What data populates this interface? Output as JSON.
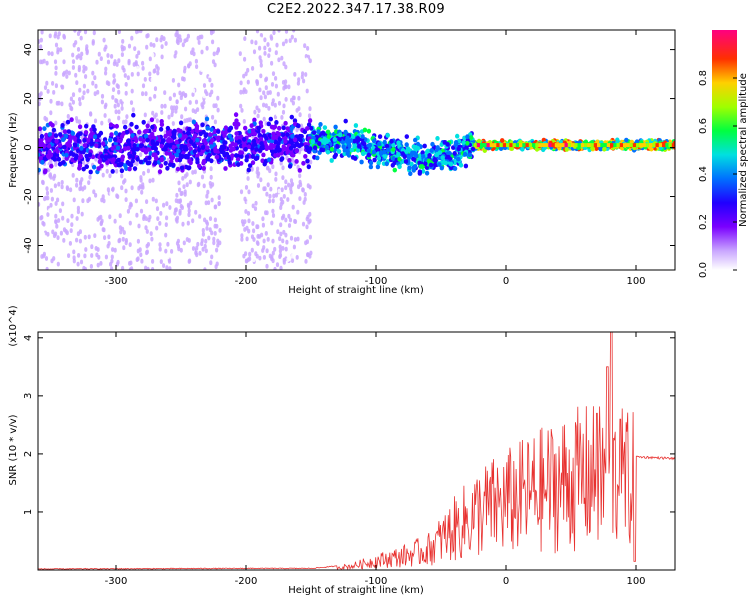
{
  "title": "C2E2.2022.347.17.38.R09",
  "chart_data": [
    {
      "type": "heatmap",
      "xlabel": "Height of straight line (km)",
      "ylabel": "Frequency (Hz)",
      "xlim": [
        -360,
        130
      ],
      "ylim": [
        -50,
        48
      ],
      "x_ticks": [
        -300,
        -200,
        -100,
        0,
        100
      ],
      "y_ticks": [
        -40,
        -20,
        0,
        20,
        40
      ],
      "colorbar": {
        "label": "Normalized spectral amplitude",
        "range": [
          0.0,
          1.0
        ],
        "ticks": [
          "0.0",
          "0.2",
          "0.4",
          "0.6",
          "0.8"
        ],
        "colors": [
          "#ffffff",
          "#c9a6ff",
          "#7a00ff",
          "#2000ff",
          "#0070ff",
          "#00e0e0",
          "#00ff40",
          "#a0ff00",
          "#ffd000",
          "#ff3000",
          "#ff0080"
        ]
      },
      "ridge_frequency_hz": [
        {
          "x": -360,
          "y": 0
        },
        {
          "x": -300,
          "y": 0
        },
        {
          "x": -220,
          "y": 1
        },
        {
          "x": -150,
          "y": 3
        },
        {
          "x": -120,
          "y": 2
        },
        {
          "x": -90,
          "y": -2
        },
        {
          "x": -60,
          "y": -4
        },
        {
          "x": -35,
          "y": -2
        },
        {
          "x": -25,
          "y": 1
        },
        {
          "x": 0,
          "y": 1
        },
        {
          "x": 130,
          "y": 1
        }
      ],
      "grid": false
    },
    {
      "type": "line",
      "xlabel": "Height of straight line (km)",
      "ylabel": "SNR (10 * v/v)",
      "y_multiplier": "(x10^4)",
      "xlim": [
        -360,
        130
      ],
      "ylim": [
        0,
        4.1
      ],
      "x_ticks": [
        -300,
        -200,
        -100,
        0,
        100
      ],
      "y_ticks": [
        1,
        2,
        3,
        4
      ],
      "series_color": "#e8312f",
      "envelope": [
        {
          "x": -360,
          "y": 0.01
        },
        {
          "x": -200,
          "y": 0.02
        },
        {
          "x": -150,
          "y": 0.02
        },
        {
          "x": -120,
          "y": 0.08
        },
        {
          "x": -100,
          "y": 0.2
        },
        {
          "x": -80,
          "y": 0.3
        },
        {
          "x": -60,
          "y": 0.45
        },
        {
          "x": -40,
          "y": 0.9
        },
        {
          "x": -20,
          "y": 1.3
        },
        {
          "x": 0,
          "y": 1.5
        },
        {
          "x": 20,
          "y": 1.7
        },
        {
          "x": 40,
          "y": 1.9
        },
        {
          "x": 60,
          "y": 2.05
        },
        {
          "x": 80,
          "y": 2.05
        },
        {
          "x": 100,
          "y": 1.95
        },
        {
          "x": 130,
          "y": 1.92
        }
      ],
      "spikes": [
        {
          "x": 78,
          "y": 3.5
        },
        {
          "x": 81,
          "y": 4.1
        },
        {
          "x": 88,
          "y": 2.6
        },
        {
          "x": 99,
          "y": 0.15
        },
        {
          "x": 70,
          "y": 2.7
        }
      ],
      "grid": false
    }
  ]
}
